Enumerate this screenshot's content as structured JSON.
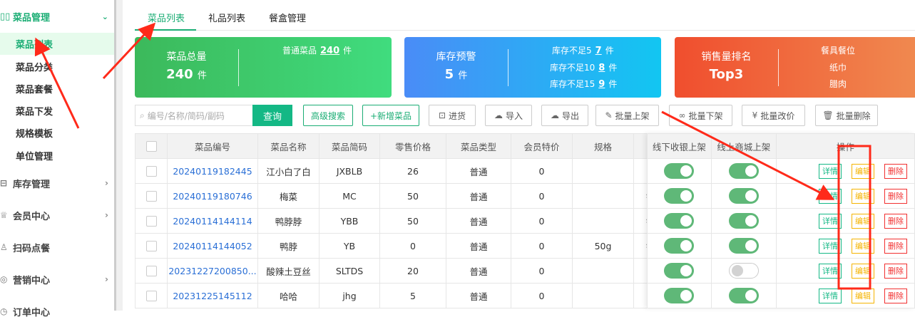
{
  "sidebar": {
    "group_active": {
      "label": "菜品管理",
      "icon": "grid-icon"
    },
    "sub_items": [
      {
        "label": "菜品列表",
        "active": true
      },
      {
        "label": "菜品分类"
      },
      {
        "label": "菜品套餐"
      },
      {
        "label": "菜品下发"
      },
      {
        "label": "规格模板"
      },
      {
        "label": "单位管理"
      }
    ],
    "groups": [
      {
        "label": "库存管理",
        "icon": "box-icon"
      },
      {
        "label": "会员中心",
        "icon": "crown-icon"
      },
      {
        "label": "扫码点餐",
        "icon": "user-icon"
      },
      {
        "label": "营销中心",
        "icon": "target-icon"
      },
      {
        "label": "订单中心",
        "icon": "clock-icon"
      }
    ]
  },
  "tabs": [
    {
      "label": "菜品列表",
      "active": true
    },
    {
      "label": "礼品列表"
    },
    {
      "label": "餐盒管理"
    }
  ],
  "cards": {
    "total": {
      "title": "菜品总量",
      "value": "240",
      "unit": "件",
      "detail_label": "普通菜品",
      "detail_value": "240",
      "detail_unit": "件",
      "color_from": "#3cb95b",
      "color_to": "#40dc7e"
    },
    "stock": {
      "title": "库存预警",
      "value": "5",
      "unit": "件",
      "rows": [
        {
          "label": "库存不足5",
          "value": "7",
          "unit": "件"
        },
        {
          "label": "库存不足10",
          "value": "8",
          "unit": "件"
        },
        {
          "label": "库存不足15",
          "value": "9",
          "unit": "件"
        }
      ],
      "color_from": "#4a8cf7",
      "color_to": "#12c6f2"
    },
    "sales": {
      "title": "销售量排名",
      "value": "Top3",
      "items": [
        "餐具餐位",
        "纸巾",
        "腊肉"
      ],
      "color_from": "#f04e2e",
      "color_to": "#f08a50"
    }
  },
  "toolbar": {
    "search_placeholder": "编号/名称/简码/副码",
    "query": "查询",
    "advanced": "高级搜索",
    "add": "+新增菜品",
    "stock_in": "进货",
    "import": "导入",
    "export": "导出",
    "batch_on": "批量上架",
    "batch_off": "批量下架",
    "batch_price": "批量改价",
    "batch_delete": "批量删除"
  },
  "table": {
    "headers": [
      "菜品编号",
      "菜品名称",
      "菜品简码",
      "零售价格",
      "菜品类型",
      "会员特价",
      "规格",
      "",
      "线下收银上架",
      "线上商城上架",
      "操作"
    ],
    "rows": [
      {
        "code": "20240119182445",
        "name": "江小白了白",
        "abbr": "JXBLB",
        "price": "26",
        "type": "普通",
        "member": "0",
        "spec": "",
        "extra": "",
        "offline": true,
        "online": true
      },
      {
        "code": "20240119180746",
        "name": "梅菜",
        "abbr": "MC",
        "price": "50",
        "type": "普通",
        "member": "0",
        "spec": "",
        "extra": "钅",
        "offline": true,
        "online": true
      },
      {
        "code": "20240114144114",
        "name": "鸭脖脖",
        "abbr": "YBB",
        "price": "50",
        "type": "普通",
        "member": "0",
        "spec": "",
        "extra": "钅",
        "offline": true,
        "online": true
      },
      {
        "code": "20240114144052",
        "name": "鸭脖",
        "abbr": "YB",
        "price": "0",
        "type": "普通",
        "member": "0",
        "spec": "50g",
        "extra": "钅",
        "offline": true,
        "online": true
      },
      {
        "code": "20231227200850...",
        "name": "酸辣土豆丝",
        "abbr": "SLTDS",
        "price": "20",
        "type": "普通",
        "member": "0",
        "spec": "",
        "extra": "",
        "offline": true,
        "online": false
      },
      {
        "code": "20231225145112",
        "name": "哈哈",
        "abbr": "jhg",
        "price": "5",
        "type": "普通",
        "member": "0",
        "spec": "",
        "extra": "",
        "offline": true,
        "online": true
      }
    ],
    "actions": {
      "detail": "详情",
      "edit": "编辑",
      "delete": "删除"
    }
  },
  "annotation_color": "#ff2a1a"
}
